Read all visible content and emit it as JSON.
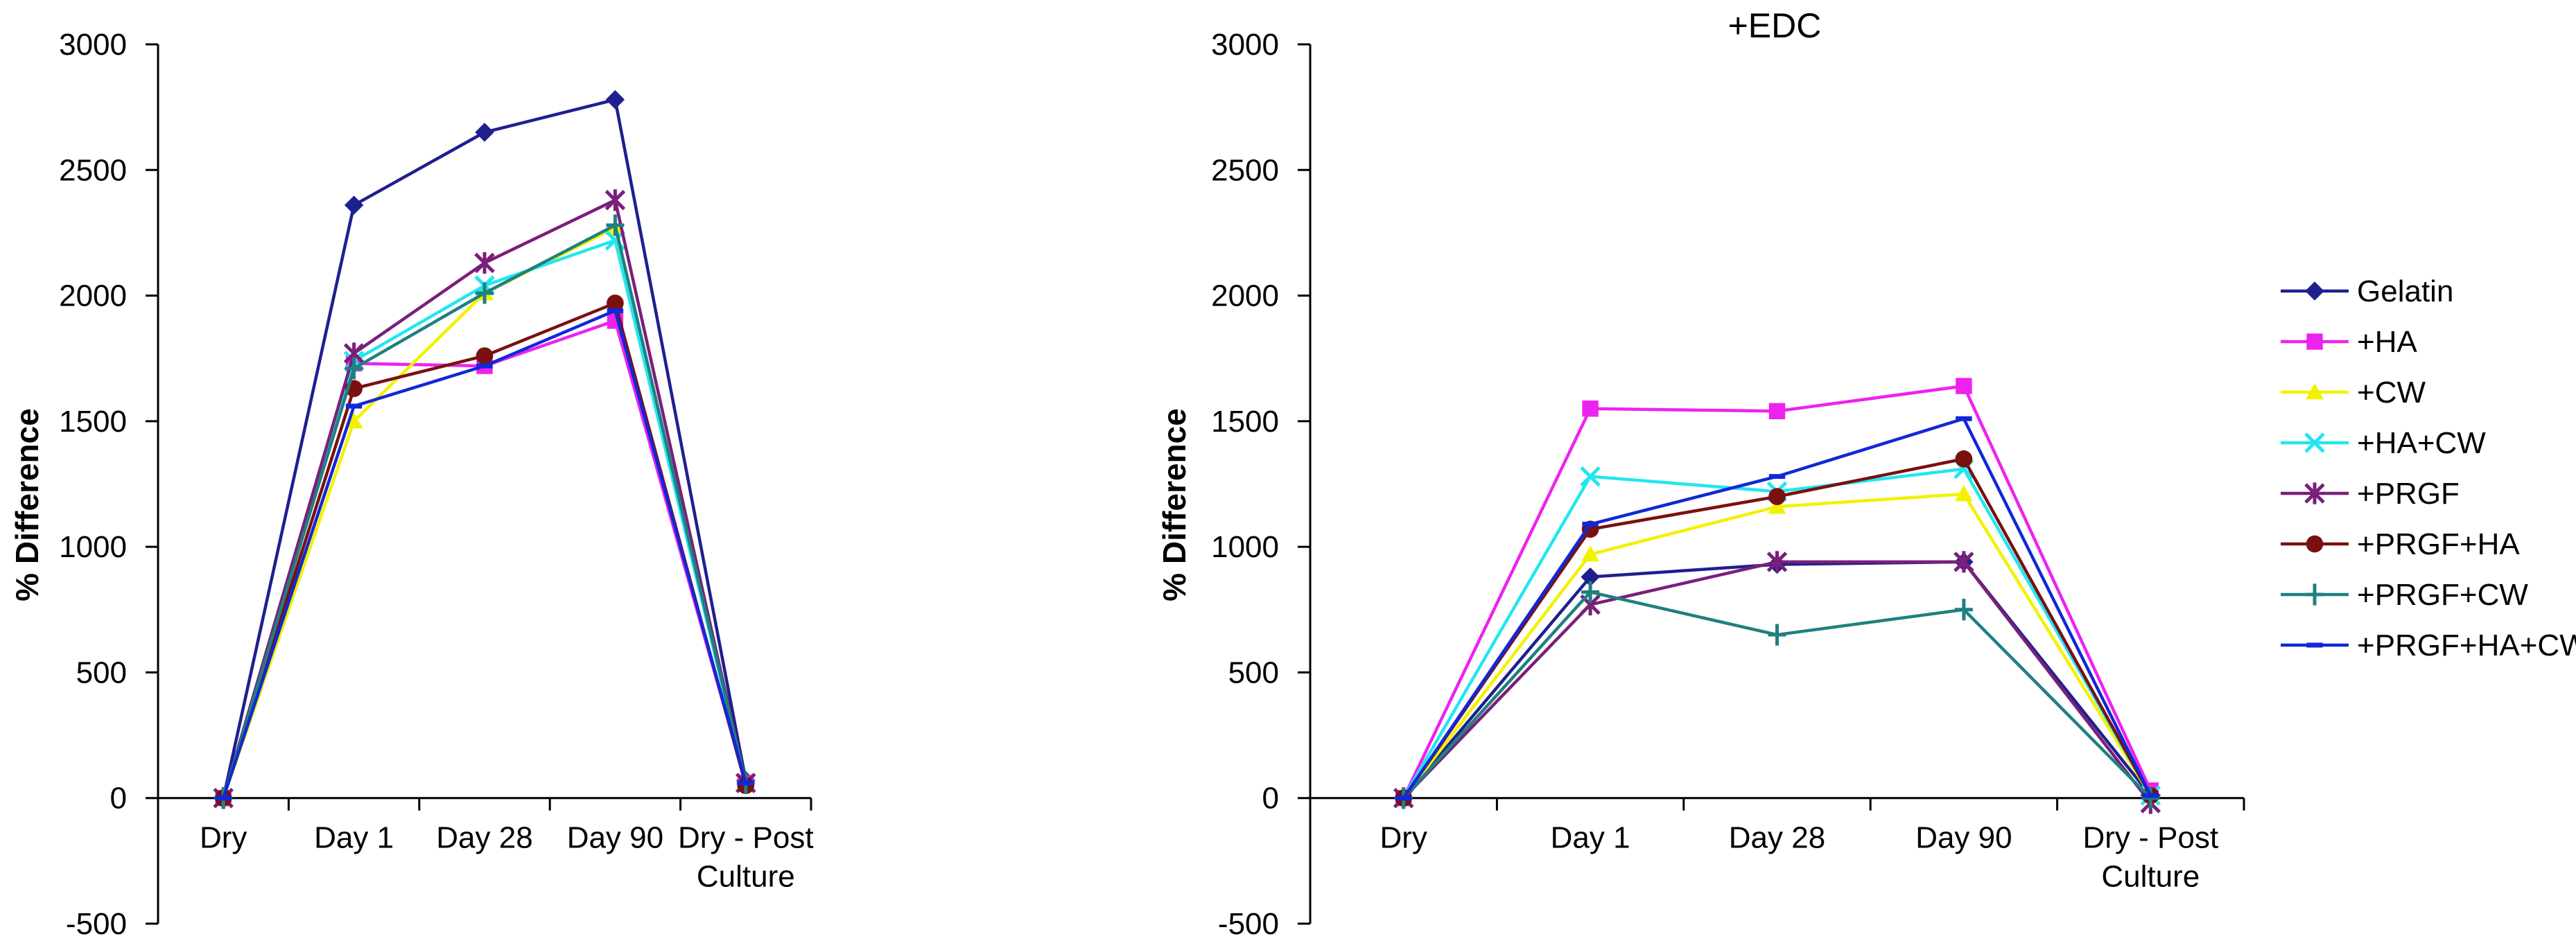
{
  "chart_data": [
    {
      "type": "line",
      "title": "",
      "xlabel": "",
      "ylabel": "% Difference",
      "ylim": [
        -500,
        3000
      ],
      "yticks": [
        -500,
        0,
        500,
        1000,
        1500,
        2000,
        2500,
        3000
      ],
      "categories": [
        "Dry",
        "Day 1",
        "Day 28",
        "Day 90",
        "Dry - Post Culture"
      ],
      "category_lines": [
        [
          "Dry"
        ],
        [
          "Day 1"
        ],
        [
          "Day 28"
        ],
        [
          "Day 90"
        ],
        [
          "Dry - Post",
          "Culture"
        ]
      ],
      "grid": false,
      "series": [
        {
          "name": "Gelatin",
          "color": "#1f1f8f",
          "marker": "diamond",
          "values": [
            0,
            2360,
            2650,
            2780,
            70
          ]
        },
        {
          "name": "+HA",
          "color": "#ee22ee",
          "marker": "square",
          "values": [
            0,
            1730,
            1720,
            1900,
            60
          ]
        },
        {
          "name": "+CW",
          "color": "#f2f200",
          "marker": "triangle",
          "values": [
            0,
            1500,
            2010,
            2270,
            60
          ]
        },
        {
          "name": "+HA+CW",
          "color": "#22e6f0",
          "marker": "x",
          "values": [
            0,
            1740,
            2040,
            2220,
            60
          ]
        },
        {
          "name": "+PRGF",
          "color": "#7a1f7a",
          "marker": "star",
          "values": [
            0,
            1770,
            2130,
            2380,
            60
          ]
        },
        {
          "name": "+PRGF+HA",
          "color": "#7a1010",
          "marker": "circle",
          "values": [
            0,
            1630,
            1760,
            1970,
            50
          ]
        },
        {
          "name": "+PRGF+CW",
          "color": "#1f8080",
          "marker": "plus",
          "values": [
            0,
            1710,
            2010,
            2280,
            60
          ]
        },
        {
          "name": "+PRGF+HA+CW",
          "color": "#1028d8",
          "marker": "dash",
          "values": [
            0,
            1560,
            1720,
            1940,
            60
          ]
        }
      ]
    },
    {
      "type": "line",
      "title": "+EDC",
      "xlabel": "",
      "ylabel": "% Difference",
      "ylim": [
        -500,
        3000
      ],
      "yticks": [
        -500,
        0,
        500,
        1000,
        1500,
        2000,
        2500,
        3000
      ],
      "categories": [
        "Dry",
        "Day 1",
        "Day 28",
        "Day 90",
        "Dry - Post Culture"
      ],
      "category_lines": [
        [
          "Dry"
        ],
        [
          "Day 1"
        ],
        [
          "Day 28"
        ],
        [
          "Day 90"
        ],
        [
          "Dry - Post",
          "Culture"
        ]
      ],
      "grid": false,
      "legend_position": "right",
      "series": [
        {
          "name": "Gelatin",
          "color": "#1f1f8f",
          "marker": "diamond",
          "values": [
            0,
            880,
            930,
            940,
            10
          ]
        },
        {
          "name": "+HA",
          "color": "#ee22ee",
          "marker": "square",
          "values": [
            0,
            1550,
            1540,
            1640,
            30
          ]
        },
        {
          "name": "+CW",
          "color": "#f2f200",
          "marker": "triangle",
          "values": [
            0,
            970,
            1160,
            1210,
            10
          ]
        },
        {
          "name": "+HA+CW",
          "color": "#22e6f0",
          "marker": "x",
          "values": [
            0,
            1280,
            1220,
            1310,
            10
          ]
        },
        {
          "name": "+PRGF",
          "color": "#7a1f7a",
          "marker": "star",
          "values": [
            0,
            770,
            940,
            940,
            -20
          ]
        },
        {
          "name": "+PRGF+HA",
          "color": "#7a1010",
          "marker": "circle",
          "values": [
            0,
            1070,
            1200,
            1350,
            10
          ]
        },
        {
          "name": "+PRGF+CW",
          "color": "#1f8080",
          "marker": "plus",
          "values": [
            0,
            820,
            650,
            750,
            0
          ]
        },
        {
          "name": "+PRGF+HA+CW",
          "color": "#1028d8",
          "marker": "dash",
          "values": [
            0,
            1090,
            1280,
            1510,
            10
          ]
        }
      ]
    }
  ]
}
